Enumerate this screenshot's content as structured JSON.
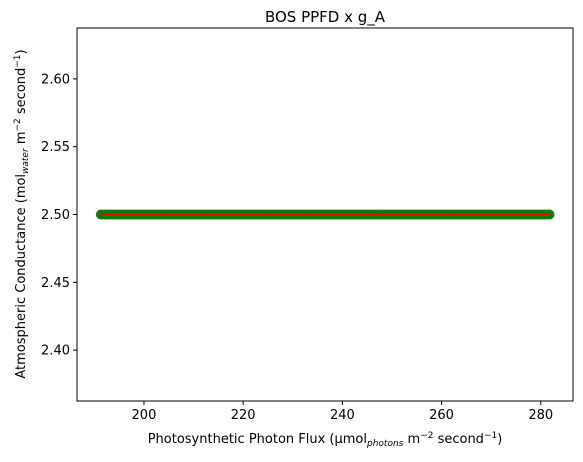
{
  "chart_data": {
    "type": "scatter",
    "title": "BOS PPFD x g_A",
    "xlabel": {
      "main": "Photosynthetic Photon Flux (µmol",
      "sub": "photons",
      "mid": " m",
      "sup1": "−2",
      "mid2": " second",
      "sup2": "−1",
      "end": ")"
    },
    "ylabel": {
      "main": "Atmospheric Conductance (mol",
      "sub": "water",
      "mid": " m",
      "sup1": "−2",
      "mid2": " second",
      "sup2": "−1",
      "end": ")"
    },
    "xlim": [
      186.5,
      286.5
    ],
    "ylim": [
      2.3625,
      2.6375
    ],
    "xticks": [
      200,
      220,
      240,
      260,
      280
    ],
    "xtick_labels": [
      "200",
      "220",
      "240",
      "260",
      "280"
    ],
    "yticks": [
      2.4,
      2.45,
      2.5,
      2.55,
      2.6
    ],
    "ytick_labels": [
      "2.40",
      "2.45",
      "2.50",
      "2.55",
      "2.60"
    ],
    "grid": false,
    "series": [
      {
        "kind": "scatter",
        "color": "#008000",
        "x_range": [
          191.3,
          281.8
        ],
        "y": 2.5
      },
      {
        "kind": "line",
        "color": "#ff0000",
        "x": [
          191.3,
          281.8
        ],
        "y": [
          2.5,
          2.5
        ]
      }
    ]
  }
}
